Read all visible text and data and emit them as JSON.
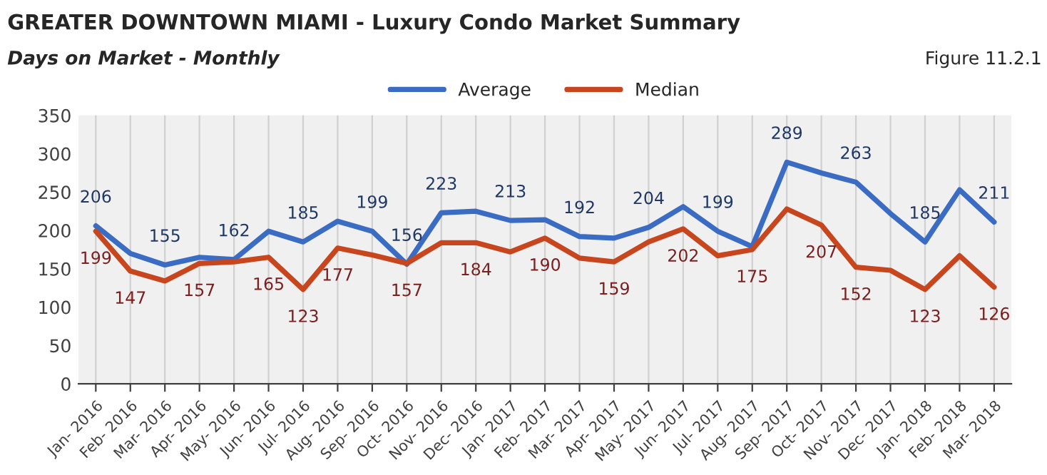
{
  "chart_data": {
    "type": "line",
    "title": "GREATER DOWNTOWN MIAMI - Luxury Condo Market Summary",
    "subtitle": "Days on Market - Monthly",
    "annotations": [
      "Figure 11.2.1"
    ],
    "categories": [
      "Jan- 2016",
      "Feb- 2016",
      "Mar- 2016",
      "Apr- 2016",
      "May- 2016",
      "Jun- 2016",
      "Jul- 2016",
      "Aug- 2016",
      "Sep- 2016",
      "Oct- 2016",
      "Nov- 2016",
      "Dec- 2016",
      "Jan- 2017",
      "Feb- 2017",
      "Mar- 2017",
      "Apr- 2017",
      "May- 2017",
      "Jun- 2017",
      "Jul- 2017",
      "Aug- 2017",
      "Sep- 2017",
      "Oct- 2017",
      "Nov- 2017",
      "Dec- 2017",
      "Jan- 2018",
      "Feb- 2018",
      "Mar- 2018"
    ],
    "series": [
      {
        "name": "Average",
        "color": "#3b6cc4",
        "values": [
          206,
          170,
          155,
          165,
          162,
          199,
          185,
          212,
          199,
          156,
          223,
          225,
          213,
          214,
          192,
          190,
          204,
          231,
          199,
          179,
          289,
          275,
          263,
          222,
          185,
          253,
          211
        ],
        "value_labels": [
          "206",
          null,
          "155",
          null,
          "162",
          null,
          "185",
          null,
          "199",
          "156",
          "223",
          null,
          "213",
          null,
          "192",
          null,
          "204",
          null,
          "199",
          null,
          "289",
          null,
          "263",
          null,
          "185",
          null,
          "211"
        ]
      },
      {
        "name": "Median",
        "color": "#c8461e",
        "values": [
          199,
          147,
          134,
          157,
          159,
          165,
          123,
          177,
          168,
          157,
          184,
          184,
          172,
          190,
          164,
          159,
          185,
          202,
          167,
          175,
          228,
          207,
          152,
          148,
          123,
          167,
          126
        ],
        "value_labels": [
          "199",
          "147",
          null,
          "157",
          null,
          "165",
          "123",
          "177",
          null,
          "157",
          null,
          "184",
          null,
          "190",
          null,
          "159",
          null,
          "202",
          null,
          "175",
          null,
          "207",
          "152",
          null,
          "123",
          null,
          "126"
        ]
      }
    ],
    "ylim": [
      0,
      350
    ],
    "yticks": [
      0,
      50,
      100,
      150,
      200,
      250,
      300,
      350
    ],
    "grid": "x",
    "legend": "top",
    "line_style": "solid",
    "marker": "none"
  }
}
